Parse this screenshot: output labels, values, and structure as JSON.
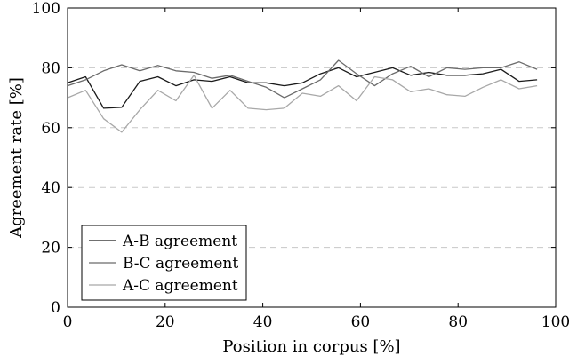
{
  "chart_data": {
    "type": "line",
    "xlabel": "Position in corpus [%]",
    "ylabel": "Agreement rate [%]",
    "xlim": [
      0,
      100
    ],
    "ylim": [
      0,
      100
    ],
    "xticks": [
      "0",
      "20",
      "40",
      "60",
      "80",
      "100"
    ],
    "yticks": [
      "0",
      "20",
      "40",
      "60",
      "80",
      "100"
    ],
    "ygrid": true,
    "legend_position": "bottom-left",
    "x": [
      0,
      3.7,
      7.4,
      11.1,
      14.8,
      18.5,
      22.2,
      25.9,
      29.6,
      33.3,
      37,
      40.7,
      44.4,
      48.1,
      51.8,
      55.5,
      59.2,
      62.9,
      66.6,
      70.3,
      74,
      77.7,
      81.4,
      85.1,
      88.8,
      92.5,
      96.2
    ],
    "series": [
      {
        "name": "A-B agreement",
        "color": "#1a1a1a",
        "values": [
          75,
          77,
          66.5,
          66.8,
          75.5,
          77,
          74,
          76,
          75.5,
          77,
          75,
          75,
          74,
          75,
          78,
          80,
          77,
          78.5,
          80,
          77.5,
          78.5,
          77.5,
          77.5,
          78,
          79.5,
          75.5,
          76
        ]
      },
      {
        "name": "B-C agreement",
        "color": "#6b6b6b",
        "values": [
          74,
          76,
          79,
          81,
          79,
          80.8,
          79,
          78.5,
          76.5,
          77.5,
          75.5,
          73.5,
          70,
          73,
          76,
          82.5,
          78,
          74,
          78,
          80.5,
          77,
          80,
          79.5,
          80,
          80,
          82,
          79.5
        ]
      },
      {
        "name": "A-C agreement",
        "color": "#a8a8a8",
        "values": [
          70,
          72.5,
          63,
          58.5,
          66,
          72.5,
          69,
          77.5,
          66.5,
          72.5,
          66.5,
          66,
          66.5,
          71.5,
          70.5,
          74,
          69,
          77,
          76,
          72,
          73,
          71,
          70.5,
          73.5,
          76,
          73,
          74
        ]
      }
    ]
  }
}
